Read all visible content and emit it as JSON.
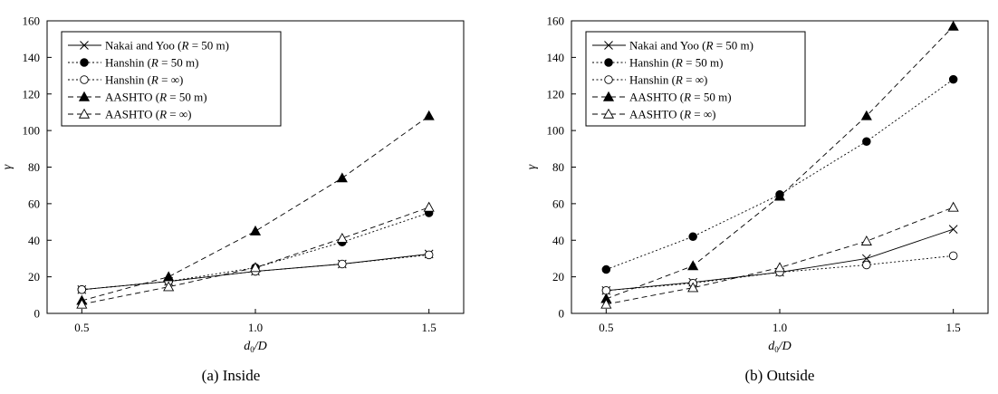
{
  "chart_data": [
    {
      "type": "line",
      "caption": "(a) Inside",
      "xlabel_main": "d",
      "xlabel_sub": "0",
      "xlabel_rest": "/D",
      "ylabel": "γ",
      "xlim": [
        0.4,
        1.6
      ],
      "ylim": [
        0,
        160
      ],
      "x_ticks": [
        0.5,
        1.0,
        1.5
      ],
      "x_tick_labels": [
        "0.5",
        "1.0",
        "1.5"
      ],
      "y_ticks": [
        0,
        20,
        40,
        60,
        80,
        100,
        120,
        140,
        160
      ],
      "y_tick_labels": [
        "0",
        "20",
        "40",
        "60",
        "80",
        "100",
        "120",
        "140",
        "160"
      ],
      "grid": false,
      "legend_position": "top-left",
      "x": [
        0.5,
        0.75,
        1.0,
        1.25,
        1.5
      ],
      "series": [
        {
          "name_prefix": "Nakai and Yoo (",
          "name_var": "R",
          "name_suffix": " = 50 m)",
          "values": [
            13,
            17.5,
            23,
            27,
            32.5
          ],
          "marker": "x",
          "line": "solid"
        },
        {
          "name_prefix": "Hanshin (",
          "name_var": "R",
          "name_suffix": " = 50 m)",
          "values": [
            13,
            17.5,
            25,
            39,
            55
          ],
          "marker": "circle-filled",
          "line": "dotted"
        },
        {
          "name_prefix": "Hanshin (",
          "name_var": "R",
          "name_suffix": " = ∞)",
          "values": [
            13,
            17.5,
            23,
            27,
            32
          ],
          "marker": "circle-open",
          "line": "dotted"
        },
        {
          "name_prefix": "AASHTO (",
          "name_var": "R",
          "name_suffix": " = 50 m)",
          "values": [
            7,
            20,
            45,
            74,
            108
          ],
          "marker": "triangle-filled",
          "line": "dashed"
        },
        {
          "name_prefix": "AASHTO (",
          "name_var": "R",
          "name_suffix": " = ∞)",
          "values": [
            5,
            14.5,
            25,
            41,
            58
          ],
          "marker": "triangle-open",
          "line": "dashed"
        }
      ]
    },
    {
      "type": "line",
      "caption": "(b) Outside",
      "xlabel_main": "d",
      "xlabel_sub": "0",
      "xlabel_rest": "/D",
      "ylabel": "γ",
      "xlim": [
        0.4,
        1.6
      ],
      "ylim": [
        0,
        160
      ],
      "x_ticks": [
        0.5,
        1.0,
        1.5
      ],
      "x_tick_labels": [
        "0.5",
        "1.0",
        "1.5"
      ],
      "y_ticks": [
        0,
        20,
        40,
        60,
        80,
        100,
        120,
        140,
        160
      ],
      "y_tick_labels": [
        "0",
        "20",
        "40",
        "60",
        "80",
        "100",
        "120",
        "140",
        "160"
      ],
      "grid": false,
      "legend_position": "top-left",
      "x": [
        0.5,
        0.75,
        1.0,
        1.25,
        1.5
      ],
      "series": [
        {
          "name_prefix": "Nakai and Yoo (",
          "name_var": "R",
          "name_suffix": " = 50 m)",
          "values": [
            12.5,
            17,
            22.5,
            30,
            46
          ],
          "marker": "x",
          "line": "solid"
        },
        {
          "name_prefix": "Hanshin (",
          "name_var": "R",
          "name_suffix": " = 50 m)",
          "values": [
            24,
            42,
            65,
            94,
            128
          ],
          "marker": "circle-filled",
          "line": "dotted"
        },
        {
          "name_prefix": "Hanshin (",
          "name_var": "R",
          "name_suffix": " = ∞)",
          "values": [
            12.5,
            16.5,
            22.5,
            26.5,
            31.5
          ],
          "marker": "circle-open",
          "line": "dotted"
        },
        {
          "name_prefix": "AASHTO (",
          "name_var": "R",
          "name_suffix": " = 50 m)",
          "values": [
            8,
            26,
            64,
            108,
            157
          ],
          "marker": "triangle-filled",
          "line": "dashed"
        },
        {
          "name_prefix": "AASHTO (",
          "name_var": "R",
          "name_suffix": " = ∞)",
          "values": [
            5,
            14,
            25,
            39.5,
            58
          ],
          "marker": "triangle-open",
          "line": "dashed"
        }
      ]
    }
  ]
}
